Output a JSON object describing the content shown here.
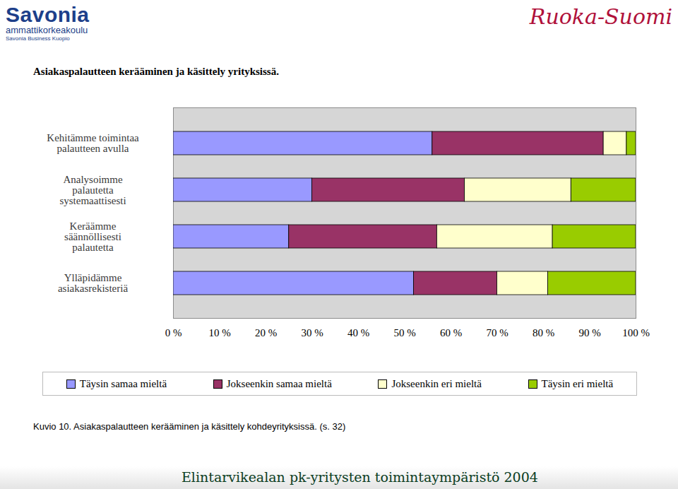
{
  "header": {
    "logo": "Savonia",
    "logo_subtitle": "ammattikorkeakoulu",
    "logo_unit": "Savonia Business Kuopio",
    "brand": "Ruoka-Suomi"
  },
  "footer": "Elintarvikealan pk-yritysten toimintaympäristö 2004",
  "chart_data": {
    "type": "bar",
    "orientation": "horizontal",
    "stacked": true,
    "title": "Asiakaspalautteen kerääminen ja käsittely yrityksissä.",
    "caption": "Kuvio 10. Asiakaspalautteen kerääminen ja käsittely kohdeyrityksissä. (s. 32)",
    "categories": [
      "Kehitämme toimintaa palautteen avulla",
      "Analysoimme palautetta systemaattisesti",
      "Keräämme säännöllisesti palautetta",
      "Ylläpidämme asiakasrekisteriä"
    ],
    "series": [
      {
        "name": "Täysin samaa mieltä",
        "color": "#9999ff",
        "values": [
          56,
          30,
          25,
          52
        ]
      },
      {
        "name": "Jokseenkin samaa mieltä",
        "color": "#993366",
        "values": [
          37,
          33,
          32,
          18
        ]
      },
      {
        "name": "Jokseenkin eri mieltä",
        "color": "#ffffcc",
        "values": [
          5,
          23,
          25,
          11
        ]
      },
      {
        "name": "Täysin eri mieltä",
        "color": "#99cc00",
        "values": [
          2,
          14,
          18,
          19
        ]
      }
    ],
    "xlim": [
      0,
      100
    ],
    "xticks": [
      {
        "value": 0,
        "label": "0 %"
      },
      {
        "value": 10,
        "label": "10 %"
      },
      {
        "value": 20,
        "label": "20 %"
      },
      {
        "value": 30,
        "label": "30 %"
      },
      {
        "value": 40,
        "label": "40 %"
      },
      {
        "value": 50,
        "label": "50 %"
      },
      {
        "value": 60,
        "label": "60 %"
      },
      {
        "value": 70,
        "label": "70 %"
      },
      {
        "value": 80,
        "label": "80 %"
      },
      {
        "value": 90,
        "label": "90 %"
      },
      {
        "value": 100,
        "label": "100 %"
      }
    ],
    "grid": false,
    "legend": "bottom"
  }
}
